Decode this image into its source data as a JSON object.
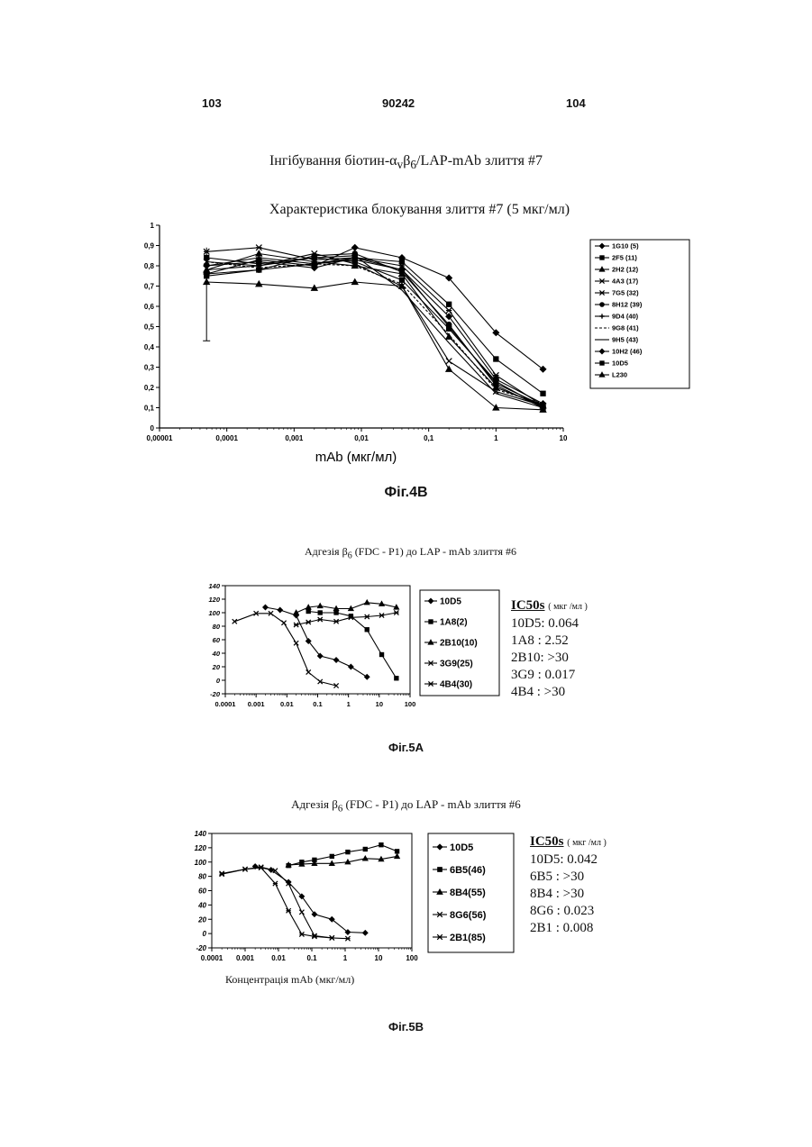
{
  "header": {
    "page_left": "103",
    "doc_number": "90242",
    "page_right": "104"
  },
  "fig4b": {
    "caption": "Фіг.4В",
    "heading": "Інгібування біотин-α<sub>v</sub>β<sub>6</sub>/LAP-mAb злиття #7",
    "chart_data": {
      "type": "line",
      "title": "Характеристика блокування злиття #7 (5 мкг/мл)",
      "xlabel": "mAb (мкг/мл)",
      "ylabel": "",
      "xscale": "log",
      "xlim": [
        1e-05,
        10
      ],
      "ylim": [
        0,
        1
      ],
      "x_ticks": [
        "0,00001",
        "0,0001",
        "0,001",
        "0,01",
        "0,1",
        "1",
        "10"
      ],
      "y_ticks": [
        "0",
        "0,1",
        "0,2",
        "0,3",
        "0,4",
        "0,5",
        "0,6",
        "0,7",
        "0,8",
        "0,9",
        "1"
      ],
      "legend_position": "right",
      "x": [
        5e-05,
        0.0003,
        0.002,
        0.008,
        0.04,
        0.2,
        1,
        5
      ],
      "series": [
        {
          "name": "1G10 (5)",
          "marker": "diamond",
          "values": [
            0.8,
            0.82,
            0.79,
            0.84,
            0.78,
            0.55,
            0.24,
            0.12
          ]
        },
        {
          "name": "2F5 (11)",
          "marker": "square",
          "values": [
            0.84,
            0.81,
            0.84,
            0.82,
            0.73,
            0.49,
            0.23,
            0.1
          ]
        },
        {
          "name": "2H2 (12)",
          "marker": "triangle",
          "values": [
            0.78,
            0.86,
            0.82,
            0.8,
            0.76,
            0.45,
            0.2,
            0.11
          ]
        },
        {
          "name": "4A3 (17)",
          "marker": "x",
          "values": [
            0.82,
            0.8,
            0.86,
            0.81,
            0.7,
            0.33,
            0.18,
            0.11
          ]
        },
        {
          "name": "7G5 (32)",
          "marker": "asterisk",
          "values": [
            0.87,
            0.89,
            0.83,
            0.84,
            0.8,
            0.58,
            0.26,
            0.11
          ]
        },
        {
          "name": "8H12 (39)",
          "marker": "circle",
          "values": [
            0.76,
            0.78,
            0.85,
            0.86,
            0.77,
            0.51,
            0.21,
            0.1
          ]
        },
        {
          "name": "9D4 (40)",
          "marker": "plus",
          "values": [
            0.8,
            0.84,
            0.81,
            0.83,
            0.78,
            0.5,
            0.22,
            0.11
          ]
        },
        {
          "name": "9G8 (41)",
          "marker": "none",
          "values": [
            0.82,
            0.79,
            0.81,
            0.8,
            0.71,
            0.46,
            0.19,
            0.12
          ]
        },
        {
          "name": "9H5 (43)",
          "marker": "none",
          "values": [
            0.78,
            0.8,
            0.84,
            0.85,
            0.68,
            0.42,
            0.17,
            0.1
          ]
        },
        {
          "name": "10H2 (46)",
          "marker": "diamond",
          "values": [
            0.76,
            0.83,
            0.8,
            0.89,
            0.84,
            0.74,
            0.47,
            0.29
          ]
        },
        {
          "name": "10D5",
          "marker": "square",
          "values": [
            0.75,
            0.78,
            0.81,
            0.84,
            0.82,
            0.61,
            0.34,
            0.17
          ]
        },
        {
          "name": "L230",
          "marker": "triangle",
          "values": [
            0.72,
            0.71,
            0.69,
            0.72,
            0.7,
            0.29,
            0.1,
            0.09
          ]
        }
      ]
    }
  },
  "fig5a": {
    "caption": "Фіг.5А",
    "chart_data": {
      "type": "line",
      "title": "Адгезія β<sub>6</sub> (FDC - P1) до LAP - mAb злиття #6",
      "xlabel": "",
      "ylabel": "",
      "xscale": "log",
      "xlim": [
        0.0001,
        100
      ],
      "ylim": [
        -20,
        140
      ],
      "x_ticks": [
        "0.0001",
        "0.001",
        "0.01",
        "0.1",
        "1",
        "10",
        "100"
      ],
      "y_ticks": [
        "-20",
        "0",
        "20",
        "40",
        "60",
        "80",
        "100",
        "120",
        "140"
      ],
      "legend_position": "right",
      "series": [
        {
          "name": "10D5",
          "marker": "diamond",
          "x": [
            0.002,
            0.006,
            0.02,
            0.05,
            0.12,
            0.4,
            1.2,
            4
          ],
          "values": [
            108,
            104,
            96,
            58,
            36,
            30,
            20,
            5
          ]
        },
        {
          "name": "1A8(2)",
          "marker": "square",
          "x": [
            0.05,
            0.12,
            0.4,
            1.2,
            4,
            12,
            36
          ],
          "values": [
            102,
            100,
            100,
            95,
            75,
            38,
            3
          ]
        },
        {
          "name": "2B10(10)",
          "marker": "triangle",
          "x": [
            0.02,
            0.05,
            0.12,
            0.4,
            1.2,
            4,
            12,
            36
          ],
          "values": [
            100,
            108,
            110,
            106,
            106,
            115,
            113,
            108
          ]
        },
        {
          "name": "3G9(25)",
          "marker": "x",
          "x": [
            0.0002,
            0.001,
            0.003,
            0.008,
            0.02,
            0.05,
            0.12,
            0.4
          ],
          "values": [
            87,
            99,
            99,
            85,
            55,
            12,
            -2,
            -8
          ]
        },
        {
          "name": "4B4(30)",
          "marker": "asterisk",
          "x": [
            0.02,
            0.05,
            0.12,
            0.4,
            1.2,
            4,
            12,
            36
          ],
          "values": [
            82,
            86,
            90,
            87,
            93,
            94,
            96,
            100
          ]
        }
      ],
      "ic50": {
        "heading": "IC50s",
        "unit": "( мкг /мл )",
        "rows": [
          "10D5:  0.064",
          "1A8 :  2.52",
          "2B10: >30",
          "3G9 :  0.017",
          "4B4 : >30"
        ]
      }
    }
  },
  "fig5b": {
    "caption": "Фіг.5В",
    "chart_data": {
      "type": "line",
      "title": "Адгезія β<sub>6</sub> (FDC - P1) до LAP - mAb злиття #6",
      "xlabel": "Концентрація mAb (мкг/мл)",
      "ylabel": "",
      "xscale": "log",
      "xlim": [
        0.0001,
        100
      ],
      "ylim": [
        -20,
        140
      ],
      "x_ticks": [
        "0.0001",
        "0.001",
        "0.01",
        "0.1",
        "1",
        "10",
        "100"
      ],
      "y_ticks": [
        "-20",
        "0",
        "20",
        "40",
        "60",
        "80",
        "100",
        "120",
        "140"
      ],
      "legend_position": "right",
      "series": [
        {
          "name": "10D5",
          "marker": "diamond",
          "x": [
            0.002,
            0.006,
            0.02,
            0.05,
            0.12,
            0.4,
            1.2,
            4
          ],
          "values": [
            94,
            89,
            72,
            52,
            27,
            20,
            2,
            1
          ]
        },
        {
          "name": "6B5(46)",
          "marker": "square",
          "x": [
            0.02,
            0.05,
            0.12,
            0.4,
            1.2,
            4,
            12,
            36
          ],
          "values": [
            95,
            100,
            103,
            108,
            114,
            118,
            124,
            115
          ]
        },
        {
          "name": "8B4(55)",
          "marker": "triangle",
          "x": [
            0.02,
            0.05,
            0.12,
            0.4,
            1.2,
            4,
            12,
            36
          ],
          "values": [
            96,
            97,
            98,
            98,
            100,
            105,
            104,
            108
          ]
        },
        {
          "name": "8G6(56)",
          "marker": "x",
          "x": [
            0.0002,
            0.001,
            0.003,
            0.008,
            0.02,
            0.05,
            0.12,
            0.4
          ],
          "values": [
            84,
            90,
            93,
            88,
            70,
            30,
            -3,
            -6
          ]
        },
        {
          "name": "2B1(85)",
          "marker": "asterisk",
          "x": [
            0.0002,
            0.001,
            0.003,
            0.008,
            0.02,
            0.05,
            0.12,
            0.4,
            1.2
          ],
          "values": [
            83,
            90,
            92,
            70,
            32,
            -1,
            -4,
            -6,
            -7
          ]
        }
      ],
      "ic50": {
        "heading": "IC50s",
        "unit": "( мкг /мл )",
        "rows": [
          "10D5:  0.042",
          "6B5 : >30",
          "8B4 : >30",
          "8G6 :  0.023",
          "2B1 :  0.008"
        ]
      }
    }
  }
}
